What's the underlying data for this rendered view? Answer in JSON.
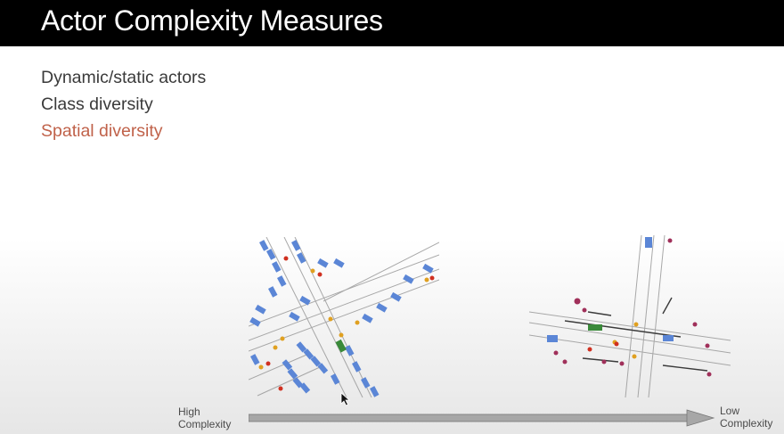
{
  "slide": {
    "title": "Actor Complexity Measures",
    "bullets": [
      "Dynamic/static actors",
      "Class diversity",
      "Spatial diversity"
    ]
  },
  "axis": {
    "left_label_line1": "High",
    "left_label_line2": "Complexity",
    "right_label_line1": "Low",
    "right_label_line2": "Complexity"
  },
  "colors": {
    "title_bar": "#000000",
    "title_text": "#ffffff",
    "bullet_text": "#3a3a3a",
    "highlight_text": "#c0624a",
    "vehicle_static": "#5b86d6",
    "vehicle_dynamic": "#3a8a3a",
    "pedestrian": "#e0a020",
    "cyclist": "#a0305a",
    "road_line": "#9a9a9a",
    "arrow": "#9a9a9a"
  },
  "figures": {
    "left_map_icon": "dense-intersection-map",
    "right_map_icon": "sparse-intersection-map",
    "cursor_icon": "mouse-pointer-icon"
  }
}
